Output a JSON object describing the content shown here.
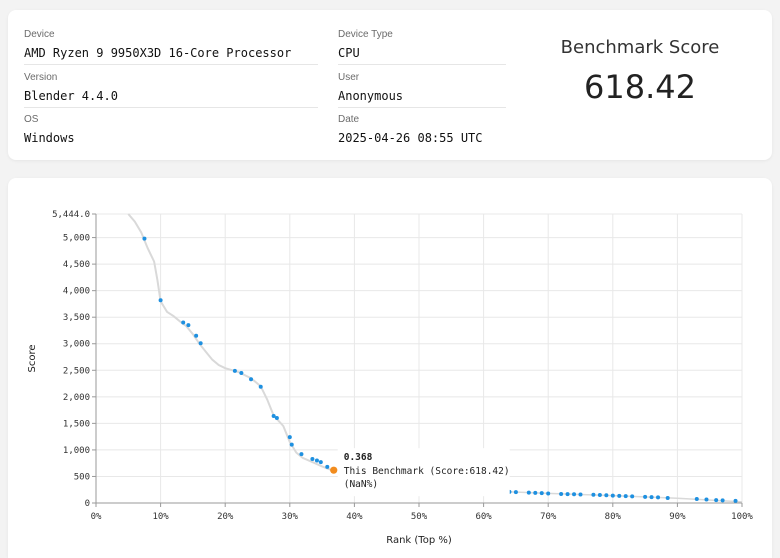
{
  "info": {
    "device_label": "Device",
    "device_value": "AMD Ryzen 9 9950X3D 16-Core Processor",
    "version_label": "Version",
    "version_value": "Blender 4.4.0",
    "os_label": "OS",
    "os_value": "Windows",
    "device_type_label": "Device Type",
    "device_type_value": "CPU",
    "user_label": "User",
    "user_value": "Anonymous",
    "date_label": "Date",
    "date_value": "2025-04-26 08:55 UTC"
  },
  "score": {
    "title": "Benchmark Score",
    "value": "618.42"
  },
  "chart_data": {
    "type": "scatter",
    "xlabel": "Rank (Top %)",
    "ylabel": "Score",
    "xlim": [
      0,
      100
    ],
    "ylim": [
      0,
      5444
    ],
    "x_ticks": [
      "0%",
      "10%",
      "20%",
      "30%",
      "40%",
      "50%",
      "60%",
      "70%",
      "80%",
      "90%",
      "100%"
    ],
    "y_ticks": [
      "0",
      "500",
      "1,000",
      "1,500",
      "2,000",
      "2,500",
      "3,000",
      "3,500",
      "4,000",
      "4,500",
      "5,000",
      "5,444.0"
    ],
    "y_tick_values": [
      0,
      500,
      1000,
      1500,
      2000,
      2500,
      3000,
      3500,
      4000,
      4500,
      5000,
      5444
    ],
    "grid": true,
    "curve_color": "#d9d9d9",
    "point_color": "#1e90e0",
    "highlight_color": "#f28c1e",
    "curve": [
      [
        5,
        5444
      ],
      [
        6,
        5300
      ],
      [
        7,
        5100
      ],
      [
        8,
        4800
      ],
      [
        9,
        4550
      ],
      [
        9.5,
        4200
      ],
      [
        10,
        3800
      ],
      [
        11,
        3600
      ],
      [
        12,
        3520
      ],
      [
        13,
        3420
      ],
      [
        14,
        3330
      ],
      [
        15,
        3180
      ],
      [
        16,
        3000
      ],
      [
        17,
        2850
      ],
      [
        18,
        2700
      ],
      [
        19,
        2600
      ],
      [
        20,
        2540
      ],
      [
        22,
        2470
      ],
      [
        24,
        2350
      ],
      [
        25.5,
        2200
      ],
      [
        26.5,
        1950
      ],
      [
        27.5,
        1650
      ],
      [
        29,
        1450
      ],
      [
        30,
        1150
      ],
      [
        31,
        950
      ],
      [
        32,
        850
      ],
      [
        33.5,
        770
      ],
      [
        35,
        690
      ],
      [
        36.5,
        618
      ]
    ],
    "points": [
      [
        7.5,
        4980
      ],
      [
        10,
        3820
      ],
      [
        13.5,
        3400
      ],
      [
        14.3,
        3350
      ],
      [
        15.5,
        3150
      ],
      [
        16.2,
        3010
      ],
      [
        21.5,
        2490
      ],
      [
        22.5,
        2450
      ],
      [
        24,
        2330
      ],
      [
        25.5,
        2190
      ],
      [
        27.5,
        1640
      ],
      [
        28,
        1600
      ],
      [
        30,
        1240
      ],
      [
        30.3,
        1100
      ],
      [
        31.8,
        920
      ],
      [
        33.5,
        830
      ],
      [
        34.2,
        800
      ],
      [
        34.8,
        770
      ],
      [
        35.8,
        680
      ],
      [
        64,
        210
      ],
      [
        65,
        205
      ],
      [
        67,
        195
      ],
      [
        68,
        190
      ],
      [
        69,
        185
      ],
      [
        70,
        180
      ],
      [
        72,
        170
      ],
      [
        73,
        168
      ],
      [
        74,
        165
      ],
      [
        75,
        160
      ],
      [
        77,
        155
      ],
      [
        78,
        150
      ],
      [
        79,
        145
      ],
      [
        80,
        140
      ],
      [
        81,
        135
      ],
      [
        82,
        130
      ],
      [
        83,
        125
      ],
      [
        85,
        115
      ],
      [
        86,
        110
      ],
      [
        87,
        105
      ],
      [
        88.5,
        95
      ],
      [
        93,
        75
      ],
      [
        94.5,
        65
      ],
      [
        96,
        55
      ],
      [
        97,
        50
      ],
      [
        99,
        40
      ]
    ],
    "tail_curve": [
      [
        63,
        215
      ],
      [
        70,
        180
      ],
      [
        80,
        140
      ],
      [
        90,
        90
      ],
      [
        100,
        20
      ]
    ],
    "highlight": {
      "x": 36.8,
      "y": 618.42,
      "tooltip_title": "0.368",
      "tooltip_line1": "This Benchmark (Score:618.42)",
      "tooltip_line2": "(NaN%)"
    }
  }
}
